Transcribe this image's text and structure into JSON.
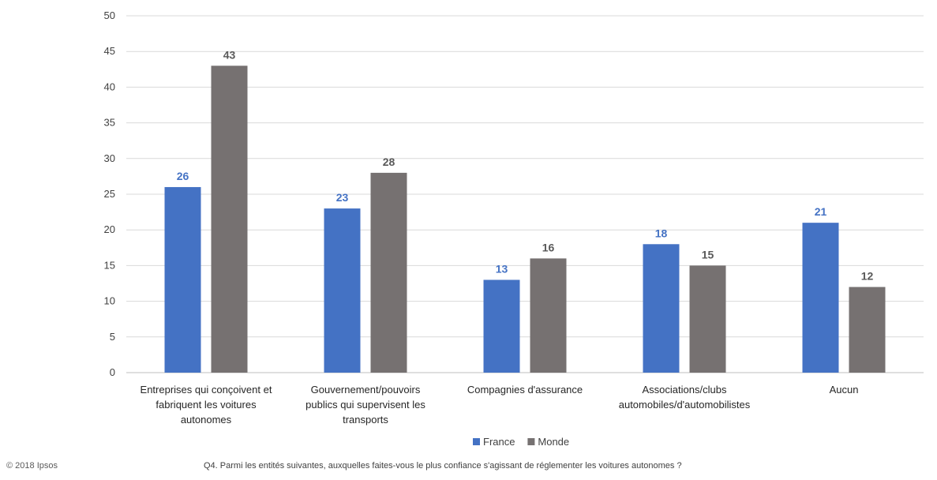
{
  "chart_data": {
    "type": "bar",
    "title": "",
    "xlabel": "",
    "ylabel": "",
    "ylim": [
      0,
      50
    ],
    "yticks": [
      0,
      5,
      10,
      15,
      20,
      25,
      30,
      35,
      40,
      45,
      50
    ],
    "grid": true,
    "legend_position": "bottom",
    "categories": [
      [
        "Entreprises qui conçoivent et",
        "fabriquent les voitures",
        "autonomes"
      ],
      [
        "Gouvernement/pouvoirs",
        "publics qui supervisent les",
        "transports"
      ],
      [
        "Compagnies d'assurance"
      ],
      [
        "Associations/clubs",
        "automobiles/d'automobilistes"
      ],
      [
        "Aucun"
      ]
    ],
    "series": [
      {
        "name": "France",
        "color": "#4472c4",
        "label_color": "#4472c4",
        "values": [
          26,
          23,
          13,
          18,
          21
        ]
      },
      {
        "name": "Monde",
        "color": "#767171",
        "label_color": "#595959",
        "values": [
          43,
          28,
          16,
          15,
          12
        ]
      }
    ]
  },
  "footer": {
    "copyright": "© 2018 Ipsos",
    "question": "Q4. Parmi les entités suivantes, auxquelles faites-vous le plus confiance s'agissant de réglementer les voitures autonomes ?"
  }
}
